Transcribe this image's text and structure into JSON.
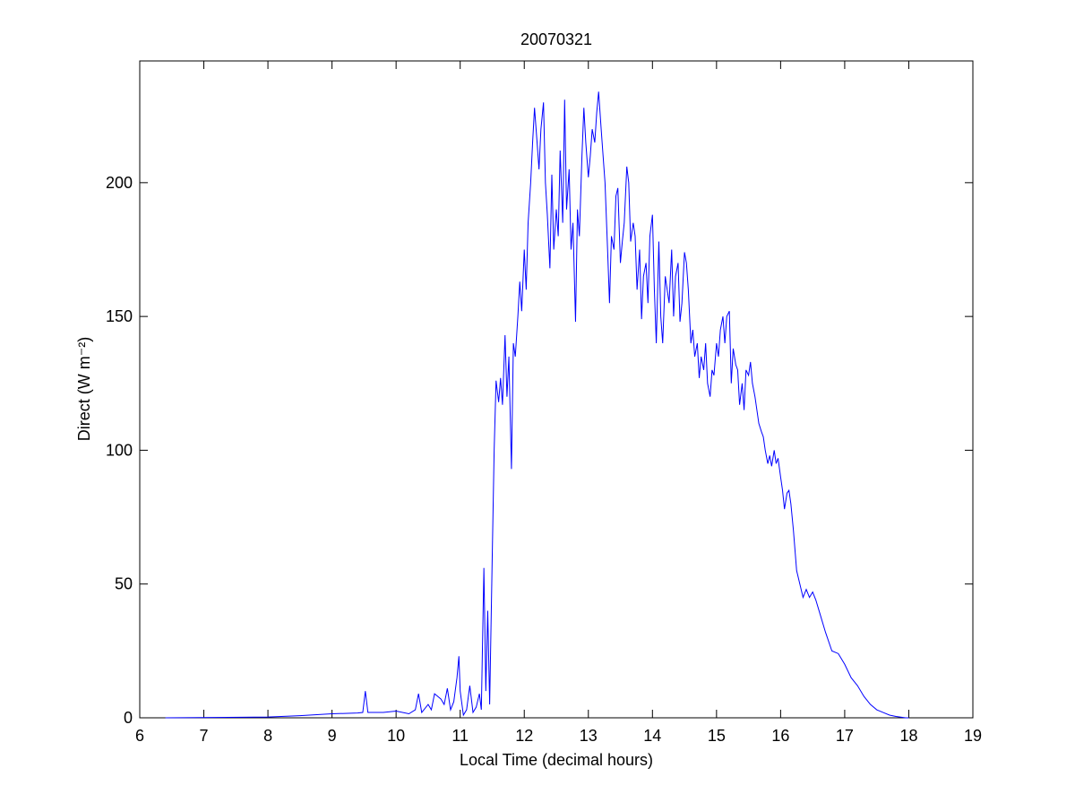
{
  "chart_data": {
    "type": "line",
    "title": "20070321",
    "xlabel": "Local Time (decimal hours)",
    "ylabel": "Direct (W m⁻²)",
    "color": "#0000ff",
    "xlim": [
      6,
      19
    ],
    "ylim": [
      0,
      245.5
    ],
    "xticks": [
      6,
      7,
      8,
      9,
      10,
      11,
      12,
      13,
      14,
      15,
      16,
      17,
      18,
      19
    ],
    "yticks": [
      0,
      50,
      100,
      150,
      200
    ],
    "x": [
      6.4,
      8.0,
      8.5,
      9.0,
      9.4,
      9.48,
      9.52,
      9.56,
      9.8,
      10.0,
      10.2,
      10.3,
      10.35,
      10.4,
      10.5,
      10.55,
      10.6,
      10.7,
      10.75,
      10.8,
      10.85,
      10.9,
      10.95,
      10.98,
      11.0,
      11.05,
      11.1,
      11.15,
      11.2,
      11.25,
      11.3,
      11.33,
      11.37,
      11.4,
      11.43,
      11.46,
      11.5,
      11.53,
      11.56,
      11.6,
      11.63,
      11.66,
      11.7,
      11.73,
      11.76,
      11.8,
      11.83,
      11.86,
      11.9,
      11.93,
      11.96,
      12.0,
      12.03,
      12.06,
      12.1,
      12.13,
      12.16,
      12.2,
      12.23,
      12.26,
      12.3,
      12.33,
      12.36,
      12.4,
      12.43,
      12.46,
      12.5,
      12.53,
      12.56,
      12.6,
      12.63,
      12.66,
      12.7,
      12.73,
      12.76,
      12.8,
      12.83,
      12.86,
      12.9,
      12.93,
      12.96,
      13.0,
      13.03,
      13.06,
      13.1,
      13.13,
      13.16,
      13.2,
      13.23,
      13.26,
      13.3,
      13.33,
      13.36,
      13.4,
      13.43,
      13.46,
      13.5,
      13.53,
      13.56,
      13.6,
      13.63,
      13.66,
      13.7,
      13.73,
      13.76,
      13.8,
      13.83,
      13.86,
      13.9,
      13.93,
      13.96,
      14.0,
      14.03,
      14.06,
      14.1,
      14.13,
      14.16,
      14.2,
      14.23,
      14.26,
      14.3,
      14.33,
      14.36,
      14.4,
      14.43,
      14.46,
      14.5,
      14.53,
      14.56,
      14.6,
      14.63,
      14.66,
      14.7,
      14.73,
      14.76,
      14.8,
      14.83,
      14.86,
      14.9,
      14.93,
      14.96,
      15.0,
      15.03,
      15.06,
      15.1,
      15.13,
      15.16,
      15.2,
      15.23,
      15.26,
      15.3,
      15.33,
      15.36,
      15.4,
      15.43,
      15.46,
      15.5,
      15.53,
      15.56,
      15.6,
      15.63,
      15.66,
      15.7,
      15.73,
      15.76,
      15.8,
      15.83,
      15.86,
      15.9,
      15.93,
      15.96,
      16.0,
      16.03,
      16.06,
      16.1,
      16.13,
      16.16,
      16.2,
      16.25,
      16.3,
      16.35,
      16.4,
      16.45,
      16.5,
      16.55,
      16.6,
      16.7,
      16.8,
      16.9,
      17.0,
      17.1,
      17.2,
      17.3,
      17.4,
      17.5,
      17.6,
      17.7,
      17.8,
      17.95,
      18.0
    ],
    "values": [
      0,
      0.3,
      0.8,
      1.5,
      1.8,
      2,
      10,
      2,
      2,
      2.5,
      1.5,
      3,
      9,
      2,
      5,
      3,
      9,
      7,
      5,
      11,
      3,
      6,
      15,
      23,
      10,
      1,
      3,
      12,
      2,
      4,
      9,
      3,
      56,
      10,
      40,
      5,
      60,
      100,
      126,
      118,
      127,
      117,
      143,
      120,
      135,
      93,
      140,
      135,
      150,
      163,
      152,
      175,
      160,
      185,
      200,
      215,
      228,
      215,
      205,
      220,
      230,
      200,
      188,
      168,
      203,
      175,
      190,
      180,
      212,
      185,
      231,
      190,
      205,
      175,
      185,
      148,
      190,
      180,
      210,
      228,
      215,
      202,
      210,
      220,
      215,
      226,
      234,
      220,
      210,
      200,
      175,
      155,
      180,
      175,
      195,
      198,
      170,
      178,
      185,
      206,
      200,
      178,
      185,
      180,
      160,
      175,
      149,
      165,
      170,
      155,
      180,
      188,
      160,
      140,
      178,
      150,
      140,
      165,
      160,
      155,
      175,
      150,
      165,
      170,
      148,
      155,
      174,
      170,
      160,
      140,
      145,
      135,
      140,
      127,
      135,
      130,
      140,
      125,
      120,
      130,
      128,
      140,
      135,
      145,
      150,
      140,
      150,
      152,
      125,
      138,
      132,
      130,
      117,
      125,
      115,
      130,
      128,
      133,
      125,
      120,
      115,
      110,
      107,
      105,
      100,
      95,
      98,
      94,
      100,
      95,
      97,
      90,
      85,
      78,
      84,
      85,
      80,
      70,
      55,
      50,
      45,
      48,
      45,
      47,
      44,
      40,
      32,
      25,
      24,
      20,
      15,
      12,
      8,
      5,
      3,
      2,
      1,
      0.5,
      0,
      0
    ]
  }
}
